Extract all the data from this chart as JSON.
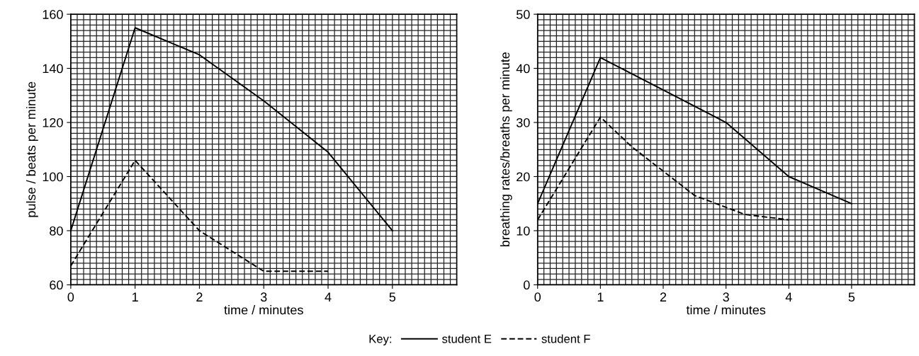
{
  "chart_data": [
    {
      "type": "line",
      "xlabel": "time / minutes",
      "ylabel": "pulse / beats per minute",
      "xlim": [
        0,
        6
      ],
      "xticks": [
        0,
        1,
        2,
        3,
        4,
        5
      ],
      "ylim": [
        60,
        160
      ],
      "yticks": [
        60,
        80,
        100,
        120,
        140,
        160
      ],
      "grid": true,
      "legend": "bottom",
      "legend_title": "Key:",
      "marker": "none",
      "series": [
        {
          "name": "student E",
          "color": "#000000",
          "line_style": "solid",
          "x": [
            0,
            1,
            2,
            3,
            4,
            5
          ],
          "values": [
            80,
            155,
            145,
            128,
            109,
            80
          ]
        },
        {
          "name": "student F",
          "color": "#000000",
          "line_style": "dashed",
          "x": [
            0,
            1,
            2,
            3,
            4
          ],
          "values": [
            67,
            106,
            80,
            65,
            65
          ]
        }
      ]
    },
    {
      "type": "line",
      "xlabel": "time / minutes",
      "ylabel": "breathing rates/breaths per minute",
      "xlim": [
        0,
        6
      ],
      "xticks": [
        0,
        1,
        2,
        3,
        4,
        5
      ],
      "ylim": [
        0,
        50
      ],
      "yticks": [
        0,
        10,
        20,
        30,
        40,
        50
      ],
      "grid": true,
      "marker": "none",
      "series": [
        {
          "color": "#000000",
          "line_style": "solid",
          "x": [
            0,
            1,
            2,
            3,
            4,
            5
          ],
          "values": [
            15,
            42,
            36,
            30,
            20,
            15
          ]
        },
        {
          "color": "#000000",
          "line_style": "dashed",
          "x": [
            0,
            1,
            1.5,
            2.5,
            3.3,
            4
          ],
          "values": [
            12,
            31,
            25.5,
            16.5,
            13,
            12
          ]
        }
      ]
    }
  ]
}
